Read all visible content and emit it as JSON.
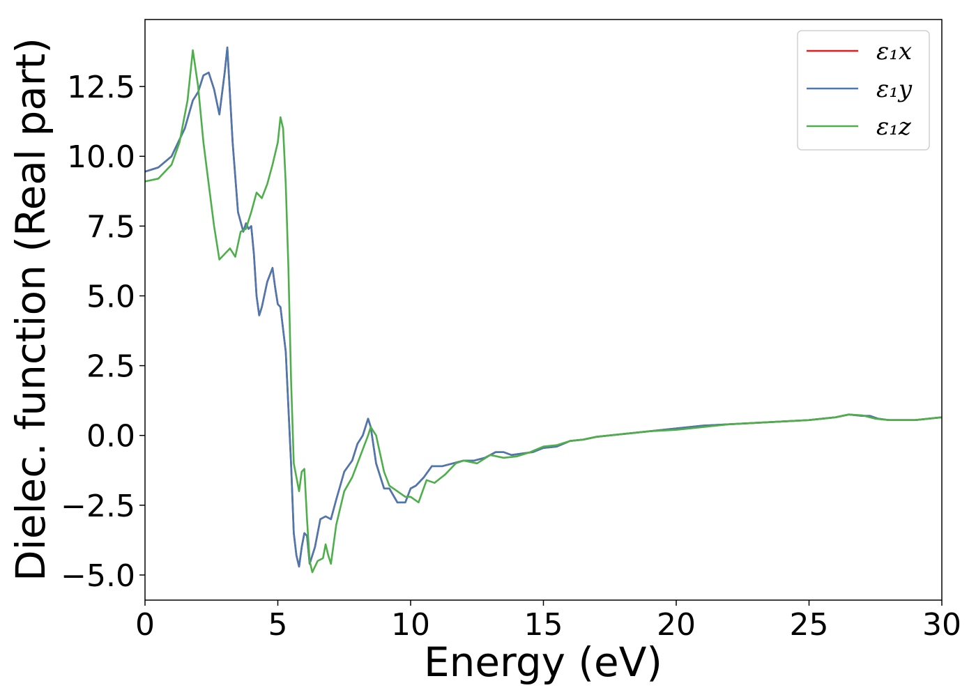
{
  "chart_data": {
    "type": "line",
    "title": "",
    "xlabel": "Energy (eV)",
    "ylabel": "Dielec. function (Real part)",
    "xlim": [
      0,
      30
    ],
    "ylim": [
      -5.9,
      14.9
    ],
    "x_ticks": [
      0,
      5,
      10,
      15,
      20,
      25,
      30
    ],
    "x_tick_labels": [
      "0",
      "5",
      "10",
      "15",
      "20",
      "25",
      "30"
    ],
    "y_ticks": [
      -5.0,
      -2.5,
      0.0,
      2.5,
      5.0,
      7.5,
      10.0,
      12.5
    ],
    "y_tick_labels": [
      "−5.0",
      "−2.5",
      "0.0",
      "2.5",
      "5.0",
      "7.5",
      "10.0",
      "12.5"
    ],
    "grid": false,
    "legend_position": "top-right",
    "series": [
      {
        "name": "ε₁x",
        "color": "#e41a1c",
        "x": [
          0,
          0.5,
          1.0,
          1.5,
          1.8,
          2.0,
          2.2,
          2.4,
          2.6,
          2.8,
          3.0,
          3.1,
          3.3,
          3.5,
          3.7,
          3.8,
          3.9,
          4.0,
          4.1,
          4.2,
          4.3,
          4.4,
          4.6,
          4.8,
          4.9,
          5.0,
          5.1,
          5.3,
          5.5,
          5.6,
          5.7,
          5.8,
          5.9,
          6.0,
          6.1,
          6.2,
          6.4,
          6.6,
          6.8,
          7.0,
          7.2,
          7.5,
          7.8,
          8.0,
          8.2,
          8.4,
          8.5,
          8.7,
          9.0,
          9.2,
          9.5,
          9.8,
          10.0,
          10.2,
          10.5,
          10.8,
          11.2,
          11.6,
          12.0,
          12.4,
          12.8,
          13.2,
          13.5,
          13.8,
          14.2,
          14.6,
          15.0,
          15.5,
          16.0,
          16.5,
          17.0,
          17.5,
          18.0,
          18.5,
          19.0,
          19.5,
          20.0,
          21.0,
          22.0,
          23.0,
          24.0,
          25.0,
          26.0,
          26.5,
          27.0,
          27.3,
          27.6,
          28.0,
          28.5,
          29.0,
          30.0
        ],
        "values": [
          9.45,
          9.6,
          10.0,
          11.0,
          12.0,
          12.3,
          12.9,
          13.0,
          12.4,
          11.5,
          13.0,
          13.9,
          10.5,
          8.0,
          7.3,
          7.6,
          7.4,
          7.5,
          6.5,
          5.0,
          4.3,
          4.6,
          5.5,
          6.0,
          5.3,
          4.7,
          4.6,
          3.0,
          -1.0,
          -3.5,
          -4.3,
          -4.7,
          -4.0,
          -3.5,
          -3.6,
          -4.6,
          -4.0,
          -3.0,
          -2.9,
          -3.0,
          -2.3,
          -1.3,
          -0.9,
          -0.3,
          0.0,
          0.6,
          0.3,
          -1.0,
          -1.9,
          -1.9,
          -2.4,
          -2.4,
          -1.9,
          -1.8,
          -1.5,
          -1.1,
          -1.1,
          -1.0,
          -0.9,
          -0.9,
          -0.8,
          -0.6,
          -0.6,
          -0.7,
          -0.65,
          -0.6,
          -0.45,
          -0.4,
          -0.2,
          -0.15,
          -0.05,
          0.0,
          0.05,
          0.1,
          0.15,
          0.2,
          0.25,
          0.35,
          0.4,
          0.45,
          0.5,
          0.55,
          0.65,
          0.75,
          0.7,
          0.7,
          0.6,
          0.55,
          0.55,
          0.55,
          0.65
        ]
      },
      {
        "name": "ε₁y",
        "color": "#4a78b0",
        "x": [
          0,
          0.5,
          1.0,
          1.5,
          1.8,
          2.0,
          2.2,
          2.4,
          2.6,
          2.8,
          3.0,
          3.1,
          3.3,
          3.5,
          3.7,
          3.8,
          3.9,
          4.0,
          4.1,
          4.2,
          4.3,
          4.4,
          4.6,
          4.8,
          4.9,
          5.0,
          5.1,
          5.3,
          5.5,
          5.6,
          5.7,
          5.8,
          5.9,
          6.0,
          6.1,
          6.2,
          6.4,
          6.6,
          6.8,
          7.0,
          7.2,
          7.5,
          7.8,
          8.0,
          8.2,
          8.4,
          8.5,
          8.7,
          9.0,
          9.2,
          9.5,
          9.8,
          10.0,
          10.2,
          10.5,
          10.8,
          11.2,
          11.6,
          12.0,
          12.4,
          12.8,
          13.2,
          13.5,
          13.8,
          14.2,
          14.6,
          15.0,
          15.5,
          16.0,
          16.5,
          17.0,
          17.5,
          18.0,
          18.5,
          19.0,
          19.5,
          20.0,
          21.0,
          22.0,
          23.0,
          24.0,
          25.0,
          26.0,
          26.5,
          27.0,
          27.3,
          27.6,
          28.0,
          28.5,
          29.0,
          30.0
        ],
        "values": [
          9.45,
          9.6,
          10.0,
          11.0,
          12.0,
          12.3,
          12.9,
          13.0,
          12.4,
          11.5,
          13.0,
          13.9,
          10.5,
          8.0,
          7.3,
          7.6,
          7.4,
          7.5,
          6.5,
          5.0,
          4.3,
          4.6,
          5.5,
          6.0,
          5.3,
          4.7,
          4.6,
          3.0,
          -1.0,
          -3.5,
          -4.3,
          -4.7,
          -4.0,
          -3.5,
          -3.6,
          -4.6,
          -4.0,
          -3.0,
          -2.9,
          -3.0,
          -2.3,
          -1.3,
          -0.9,
          -0.3,
          0.0,
          0.6,
          0.3,
          -1.0,
          -1.9,
          -1.9,
          -2.4,
          -2.4,
          -1.9,
          -1.8,
          -1.5,
          -1.1,
          -1.1,
          -1.0,
          -0.9,
          -0.9,
          -0.8,
          -0.6,
          -0.6,
          -0.7,
          -0.65,
          -0.6,
          -0.45,
          -0.4,
          -0.2,
          -0.15,
          -0.05,
          0.0,
          0.05,
          0.1,
          0.15,
          0.2,
          0.25,
          0.35,
          0.4,
          0.45,
          0.5,
          0.55,
          0.65,
          0.75,
          0.7,
          0.7,
          0.6,
          0.55,
          0.55,
          0.55,
          0.65
        ]
      },
      {
        "name": "ε₁z",
        "color": "#4daf4a",
        "x": [
          0,
          0.5,
          1.0,
          1.3,
          1.6,
          1.8,
          2.0,
          2.2,
          2.4,
          2.6,
          2.8,
          3.0,
          3.2,
          3.4,
          3.6,
          3.8,
          4.0,
          4.2,
          4.4,
          4.6,
          4.8,
          5.0,
          5.1,
          5.2,
          5.3,
          5.4,
          5.5,
          5.6,
          5.7,
          5.8,
          5.9,
          6.0,
          6.1,
          6.2,
          6.3,
          6.5,
          6.7,
          6.8,
          6.9,
          7.0,
          7.2,
          7.5,
          7.8,
          8.0,
          8.2,
          8.4,
          8.5,
          8.7,
          9.0,
          9.2,
          9.5,
          9.8,
          10.0,
          10.3,
          10.6,
          10.9,
          11.3,
          11.7,
          12.0,
          12.5,
          13.0,
          13.5,
          14.0,
          14.5,
          15.0,
          15.5,
          16.0,
          16.5,
          17.0,
          18.0,
          19.0,
          20.0,
          21.0,
          22.0,
          23.0,
          24.0,
          25.0,
          26.0,
          26.5,
          27.0,
          27.5,
          28.0,
          29.0,
          30.0
        ],
        "values": [
          9.1,
          9.2,
          9.7,
          10.5,
          12.0,
          13.8,
          12.5,
          10.5,
          9.0,
          7.5,
          6.3,
          6.5,
          6.7,
          6.4,
          7.3,
          7.4,
          8.0,
          8.7,
          8.5,
          9.0,
          9.7,
          10.5,
          11.4,
          11.0,
          9.0,
          6.0,
          2.0,
          -1.0,
          -1.5,
          -2.0,
          -1.3,
          -1.2,
          -3.0,
          -4.5,
          -4.9,
          -4.5,
          -4.4,
          -3.9,
          -4.3,
          -4.6,
          -3.2,
          -2.0,
          -1.5,
          -1.0,
          -0.5,
          0.0,
          0.3,
          0.0,
          -1.3,
          -1.8,
          -2.0,
          -2.2,
          -2.2,
          -2.4,
          -1.6,
          -1.7,
          -1.4,
          -1.0,
          -0.9,
          -1.0,
          -0.7,
          -0.8,
          -0.75,
          -0.6,
          -0.4,
          -0.35,
          -0.2,
          -0.15,
          -0.05,
          0.05,
          0.15,
          0.2,
          0.3,
          0.4,
          0.45,
          0.5,
          0.55,
          0.65,
          0.75,
          0.72,
          0.6,
          0.55,
          0.55,
          0.65
        ]
      }
    ]
  }
}
